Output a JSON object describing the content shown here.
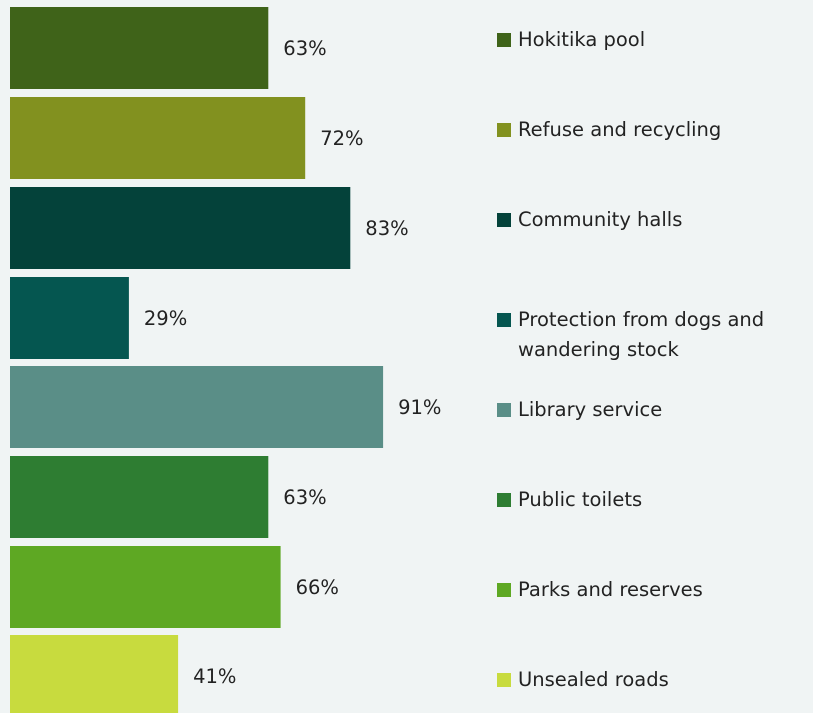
{
  "chart_data": {
    "type": "bar",
    "orientation": "horizontal",
    "categories": [
      "Hokitika pool",
      "Refuse and recycling",
      "Community halls",
      "Protection from dogs and wandering stock",
      "Library service",
      "Public toilets",
      "Parks and reserves",
      "Unsealed roads"
    ],
    "values": [
      63,
      72,
      83,
      29,
      91,
      63,
      66,
      41
    ],
    "value_labels": [
      "63%",
      "72%",
      "83%",
      "29%",
      "91%",
      "63%",
      "66%",
      "41%"
    ],
    "colors": [
      "#3f6319",
      "#82911f",
      "#04423a",
      "#055650",
      "#5a8e87",
      "#2e7d32",
      "#5ea823",
      "#c8db3e"
    ],
    "legend_labels": [
      [
        "Hokitika pool"
      ],
      [
        "Refuse and recycling"
      ],
      [
        "Community halls"
      ],
      [
        "Protection from dogs and",
        "wandering stock"
      ],
      [
        "Library service"
      ],
      [
        "Public toilets"
      ],
      [
        "Parks and reserves"
      ],
      [
        "Unsealed roads"
      ]
    ],
    "title": "",
    "xlabel": "",
    "ylabel": "",
    "xlim": [
      0,
      100
    ],
    "grid": false,
    "legend_position": "right"
  }
}
